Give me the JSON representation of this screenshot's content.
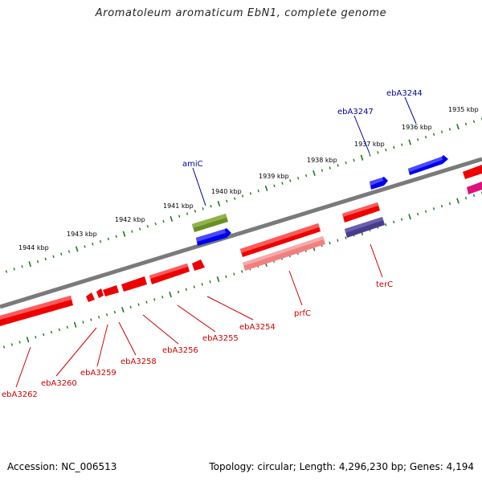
{
  "title": "Aromatoleum aromaticum EbN1, complete genome",
  "footer": {
    "accession": "Accession: NC_006513",
    "summary": "Topology: circular; Length: 4,296,230 bp; Genes: 4,194"
  },
  "colors": {
    "backbone": "#7a7a7a",
    "tick": "#1a7a1a",
    "forward_gene": "#0000ee",
    "reverse_gene": "#ee0000",
    "label_forward": "#00009a",
    "label_reverse": "#cc0000",
    "amiC": "#6b8e23",
    "prfC_pseudo": "#f08080",
    "terC_purple": "#483d8b",
    "magenta": "#e0107a"
  },
  "kbp_labels": [
    "1935 kbp",
    "1936 kbp",
    "1937 kbp",
    "1938 kbp",
    "1939 kbp",
    "1940 kbp",
    "1941 kbp",
    "1942 kbp",
    "1943 kbp",
    "1944 kbp"
  ],
  "forward_genes": [
    "ebA3244",
    "ebA3247",
    "amiC"
  ],
  "reverse_genes": [
    "terC",
    "prfC",
    "ebA3254",
    "ebA3255",
    "ebA3256",
    "ebA3258",
    "ebA3259",
    "ebA3260",
    "ebA3262"
  ]
}
